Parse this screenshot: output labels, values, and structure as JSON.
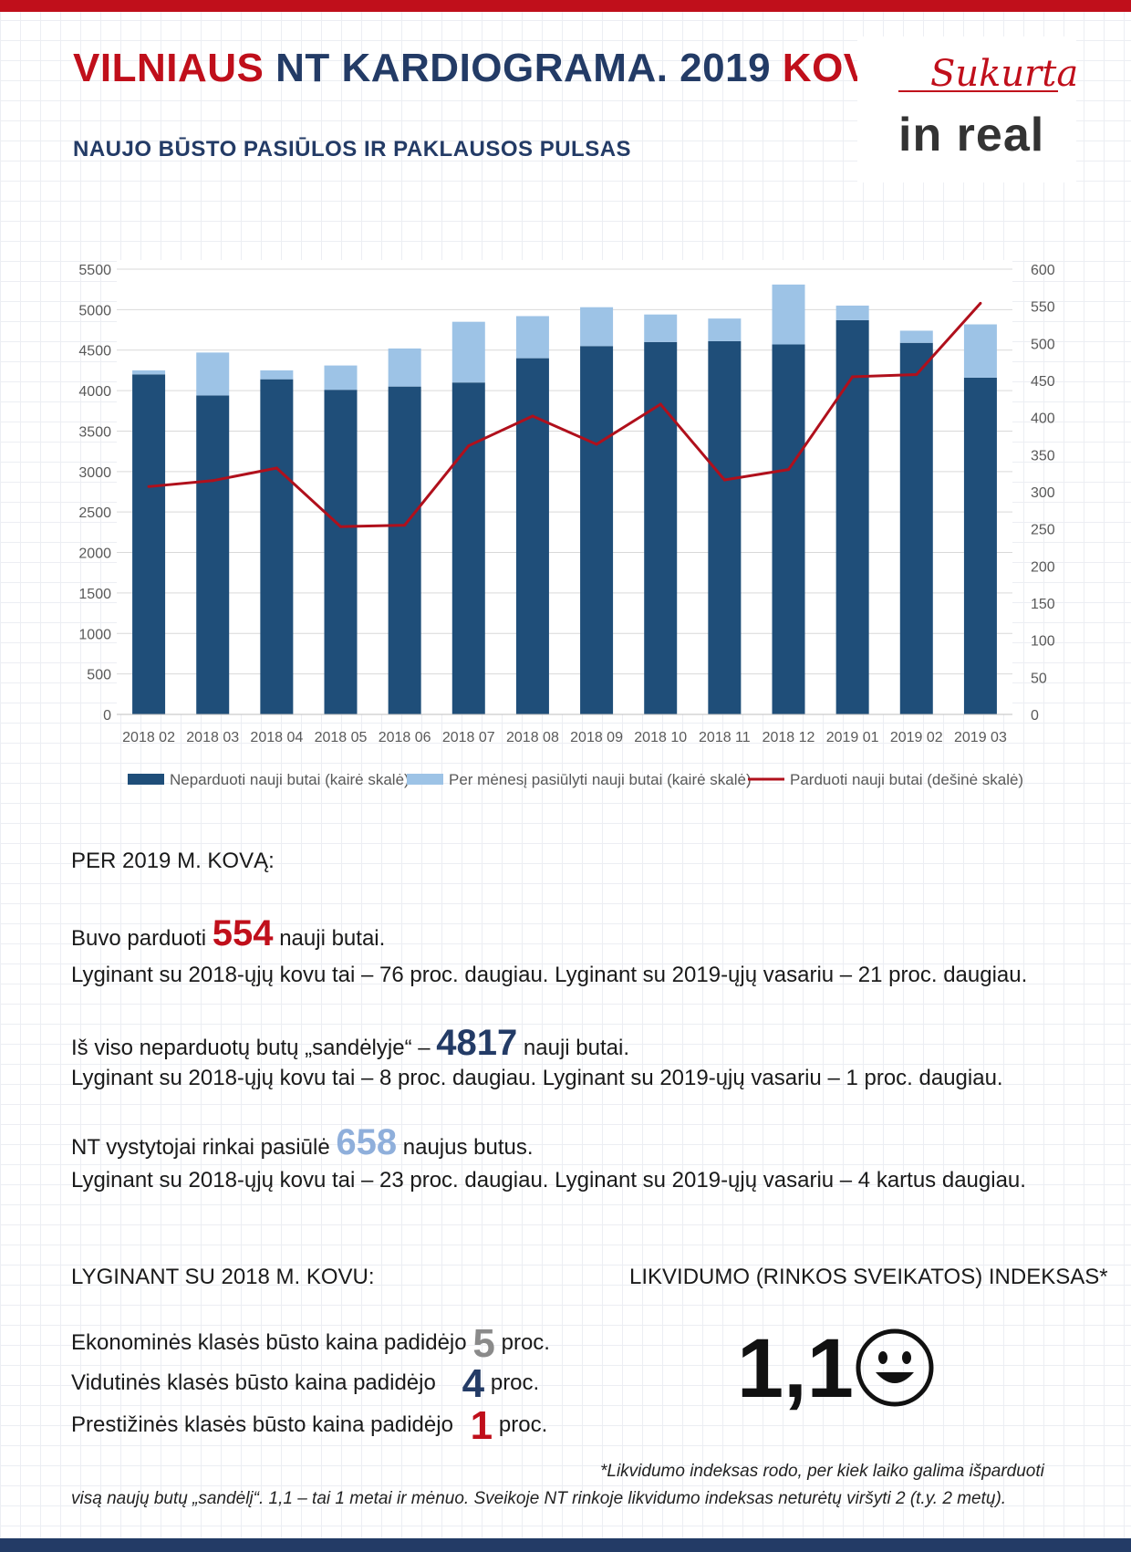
{
  "header": {
    "title_part1": "VILNIAUS",
    "title_part2": "NT KARDIOGRAMA. 2019",
    "title_part3": "KOVAS",
    "subtitle": "NAUJO BŪSTO PASIŪLOS IR PAKLAUSOS PULSAS"
  },
  "brand": {
    "sukurta": "Sukurta",
    "logo": "in real"
  },
  "chart_data": {
    "type": "bar",
    "stacked": true,
    "categories": [
      "2018 02",
      "2018 03",
      "2018 04",
      "2018 05",
      "2018 06",
      "2018 07",
      "2018 08",
      "2018 09",
      "2018 10",
      "2018 11",
      "2018 12",
      "2019 01",
      "2019 02",
      "2019 03"
    ],
    "series": [
      {
        "name": "Neparduoti nauji butai (kairė skalė)",
        "axis": "left",
        "type": "bar",
        "color": "#1f4e79",
        "values": [
          4200,
          3940,
          4140,
          4010,
          4050,
          4100,
          4400,
          4550,
          4600,
          4610,
          4570,
          4870,
          4590,
          4160
        ]
      },
      {
        "name": "Per mėnesį pasiūlyti nauji butai (kairė skalė)",
        "axis": "left",
        "type": "bar",
        "color": "#9dc3e6",
        "values": [
          50,
          530,
          110,
          300,
          470,
          750,
          520,
          480,
          340,
          280,
          740,
          180,
          150,
          658
        ]
      },
      {
        "name": "Parduoti nauji butai (dešinė skalė)",
        "axis": "right",
        "type": "line",
        "color": "#b0101c",
        "values": [
          307,
          315,
          332,
          253,
          255,
          362,
          402,
          364,
          418,
          316,
          330,
          455,
          458,
          554
        ]
      }
    ],
    "y_left": {
      "min": 0,
      "max": 5500,
      "ticks": [
        0,
        500,
        1000,
        1500,
        2000,
        2500,
        3000,
        3500,
        4000,
        4500,
        5000,
        5500
      ]
    },
    "y_right": {
      "min": 0,
      "max": 600,
      "ticks": [
        0,
        50,
        100,
        150,
        200,
        250,
        300,
        350,
        400,
        450,
        500,
        550,
        600
      ]
    },
    "grid": true,
    "legend_position": "bottom"
  },
  "section1": {
    "heading": "PER 2019 M. KOVĄ:",
    "line1_pre": "Buvo parduoti",
    "line1_num": "554",
    "line1_post": "nauji butai.",
    "line1_detail": "Lyginant su 2018-ųjų kovu tai – 76 proc. daugiau. Lyginant su 2019-ųjų vasariu – 21 proc. daugiau.",
    "line2_pre": "Iš viso neparduotų butų „sandėlyje“ –",
    "line2_num": "4817",
    "line2_post": "nauji butai.",
    "line2_detail": "Lyginant su 2018-ųjų kovu tai – 8 proc. daugiau. Lyginant su 2019-ųjų vasariu – 1 proc. daugiau.",
    "line3_pre": "NT vystytojai rinkai pasiūlė",
    "line3_num": "658",
    "line3_post": "naujus butus.",
    "line3_detail": "Lyginant su 2018-ųjų kovu tai – 23 proc. daugiau. Lyginant su 2019-ųjų vasariu – 4 kartus daugiau."
  },
  "section2": {
    "heading": "LYGINANT SU 2018 M. KOVU:",
    "rows": [
      {
        "label": "Ekonominės klasės būsto kaina padidėjo",
        "value": "5",
        "unit": "proc."
      },
      {
        "label": "Vidutinės klasės būsto kaina padidėjo",
        "value": "4",
        "unit": "proc."
      },
      {
        "label": "Prestižinės klasės būsto kaina padidėjo",
        "value": "1",
        "unit": "proc."
      }
    ]
  },
  "liquidity": {
    "heading": "LIKVIDUMO (RINKOS SVEIKATOS) INDEKSAS*",
    "value": "1,1",
    "icon": "smiley-face-icon"
  },
  "footnote": {
    "line1": "*Likvidumo indeksas rodo, per kiek laiko galima išparduoti",
    "line2": "visą naujų butų „sandėlį“. 1,1 – tai 1 metai ir  mėnuo.  Sveikoje NT rinkoje likvidumo indeksas neturėtų viršyti 2 (t.y. 2 metų)."
  }
}
